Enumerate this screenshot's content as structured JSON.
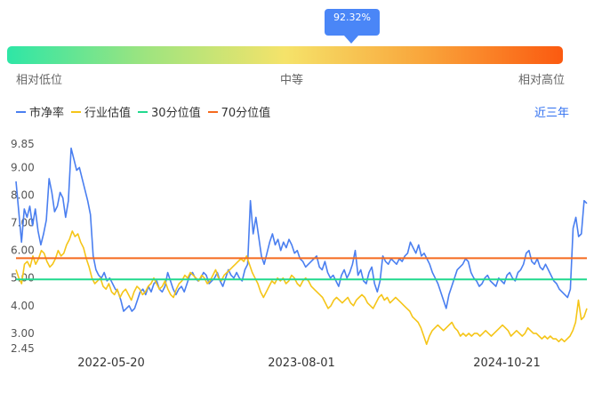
{
  "gauge": {
    "percentile_label": "92.32%",
    "percentile": 92.32,
    "low_label": "相对低位",
    "mid_label": "中等",
    "high_label": "相对高位"
  },
  "legend": {
    "pb": "市净率",
    "industry": "行业估值",
    "p30": "30分位值",
    "p70": "70分位值"
  },
  "range_label": "近三年",
  "colors": {
    "pb": "#4a7ff0",
    "industry": "#f5c518",
    "p30": "#21d98e",
    "p70": "#f56a1e"
  },
  "chart_data": {
    "type": "line",
    "x_ticks": [
      "2022-05-20",
      "2023-08-01",
      "2024-10-21"
    ],
    "y_ticks": [
      "9.85",
      "9.00",
      "8.00",
      "7.00",
      "6.00",
      "5.00",
      "4.00",
      "3.00",
      "2.45"
    ],
    "ylim": [
      2.45,
      9.85
    ],
    "percentile_30": 4.95,
    "percentile_70": 5.72,
    "series": [
      {
        "name": "市净率",
        "key": "pb",
        "values": [
          8.5,
          7.4,
          6.3,
          7.5,
          7.2,
          7.6,
          6.9,
          7.5,
          6.7,
          6.2,
          6.6,
          7.1,
          8.6,
          8.1,
          7.4,
          7.6,
          8.1,
          7.9,
          7.2,
          7.8,
          9.7,
          9.3,
          8.9,
          9.0,
          8.6,
          8.2,
          7.8,
          7.3,
          5.8,
          5.3,
          5.1,
          5.0,
          5.2,
          4.9,
          5.0,
          4.8,
          4.6,
          4.5,
          4.2,
          3.8,
          3.9,
          4.0,
          3.8,
          3.9,
          4.2,
          4.5,
          4.6,
          4.4,
          4.7,
          4.5,
          4.8,
          4.9,
          4.6,
          4.5,
          4.7,
          5.2,
          4.9,
          4.6,
          4.4,
          4.6,
          4.7,
          4.5,
          4.8,
          5.1,
          5.2,
          5.0,
          4.9,
          5.0,
          5.2,
          5.1,
          4.8,
          4.9,
          5.0,
          5.2,
          4.9,
          4.7,
          5.0,
          5.3,
          5.1,
          5.0,
          5.2,
          5.0,
          4.9,
          5.3,
          5.5,
          7.8,
          6.6,
          7.2,
          6.5,
          5.8,
          5.5,
          5.9,
          6.3,
          6.6,
          6.2,
          6.4,
          6.0,
          6.3,
          6.1,
          6.4,
          6.2,
          5.9,
          6.0,
          5.7,
          5.6,
          5.4,
          5.5,
          5.6,
          5.7,
          5.8,
          5.4,
          5.3,
          5.6,
          5.2,
          5.0,
          5.1,
          4.9,
          4.7,
          5.1,
          5.3,
          5.0,
          5.2,
          5.5,
          6.0,
          5.1,
          5.3,
          4.9,
          4.8,
          5.2,
          5.4,
          4.8,
          4.5,
          4.9,
          5.8,
          5.6,
          5.5,
          5.7,
          5.6,
          5.5,
          5.7,
          5.6,
          5.8,
          5.9,
          6.3,
          6.1,
          5.9,
          6.2,
          5.8,
          5.9,
          5.7,
          5.5,
          5.2,
          5.0,
          4.8,
          4.5,
          4.2,
          3.9,
          4.4,
          4.7,
          5.0,
          5.3,
          5.4,
          5.5,
          5.7,
          5.6,
          5.2,
          5.0,
          4.9,
          4.7,
          4.8,
          5.0,
          5.1,
          4.9,
          4.8,
          4.7,
          5.0,
          4.9,
          4.8,
          5.1,
          5.2,
          5.0,
          4.9,
          5.2,
          5.3,
          5.5,
          5.9,
          6.0,
          5.6,
          5.5,
          5.7,
          5.4,
          5.3,
          5.5,
          5.3,
          5.1,
          4.9,
          4.8,
          4.6,
          4.5,
          4.4,
          4.3,
          4.6,
          6.8,
          7.2,
          6.5,
          6.6,
          7.8,
          7.7
        ]
      },
      {
        "name": "行业估值",
        "key": "industry",
        "values": [
          5.3,
          5.0,
          4.8,
          5.5,
          5.6,
          5.4,
          5.8,
          5.5,
          5.7,
          6.0,
          5.9,
          5.6,
          5.4,
          5.5,
          5.7,
          6.0,
          5.8,
          5.9,
          6.2,
          6.4,
          6.7,
          6.5,
          6.6,
          6.3,
          6.1,
          5.7,
          5.4,
          5.0,
          4.8,
          4.9,
          5.0,
          4.7,
          4.6,
          4.8,
          4.5,
          4.4,
          4.6,
          4.3,
          4.5,
          4.6,
          4.4,
          4.2,
          4.5,
          4.7,
          4.6,
          4.4,
          4.5,
          4.7,
          4.8,
          5.0,
          4.8,
          4.6,
          4.7,
          4.9,
          4.6,
          4.4,
          4.3,
          4.6,
          4.8,
          4.9,
          5.1,
          5.0,
          5.2,
          5.1,
          5.0,
          4.9,
          5.1,
          5.0,
          4.8,
          4.9,
          5.1,
          5.3,
          5.0,
          4.9,
          5.1,
          5.2,
          5.3,
          5.4,
          5.5,
          5.6,
          5.7,
          5.6,
          5.8,
          5.5,
          5.2,
          5.0,
          4.8,
          4.5,
          4.3,
          4.5,
          4.7,
          4.9,
          4.8,
          5.0,
          4.9,
          5.0,
          4.8,
          4.9,
          5.1,
          5.0,
          4.8,
          4.7,
          4.9,
          5.0,
          4.9,
          4.7,
          4.6,
          4.5,
          4.4,
          4.3,
          4.1,
          3.9,
          4.0,
          4.2,
          4.3,
          4.2,
          4.1,
          4.2,
          4.3,
          4.1,
          4.0,
          4.2,
          4.3,
          4.4,
          4.3,
          4.1,
          4.0,
          3.9,
          4.1,
          4.3,
          4.4,
          4.2,
          4.3,
          4.1,
          4.2,
          4.3,
          4.2,
          4.1,
          4.0,
          3.9,
          3.8,
          3.6,
          3.5,
          3.4,
          3.2,
          2.9,
          2.6,
          2.9,
          3.1,
          3.2,
          3.3,
          3.2,
          3.1,
          3.2,
          3.3,
          3.4,
          3.2,
          3.1,
          2.9,
          3.0,
          2.9,
          3.0,
          2.9,
          3.0,
          3.0,
          2.9,
          3.0,
          3.1,
          3.0,
          2.9,
          3.0,
          3.1,
          3.2,
          3.3,
          3.2,
          3.1,
          2.9,
          3.0,
          3.1,
          3.0,
          2.9,
          3.0,
          3.2,
          3.1,
          3.0,
          3.0,
          2.9,
          2.8,
          2.9,
          2.8,
          2.9,
          2.8,
          2.8,
          2.7,
          2.8,
          2.7,
          2.8,
          2.9,
          3.1,
          3.4,
          4.2,
          3.5,
          3.6,
          3.9
        ]
      }
    ]
  }
}
